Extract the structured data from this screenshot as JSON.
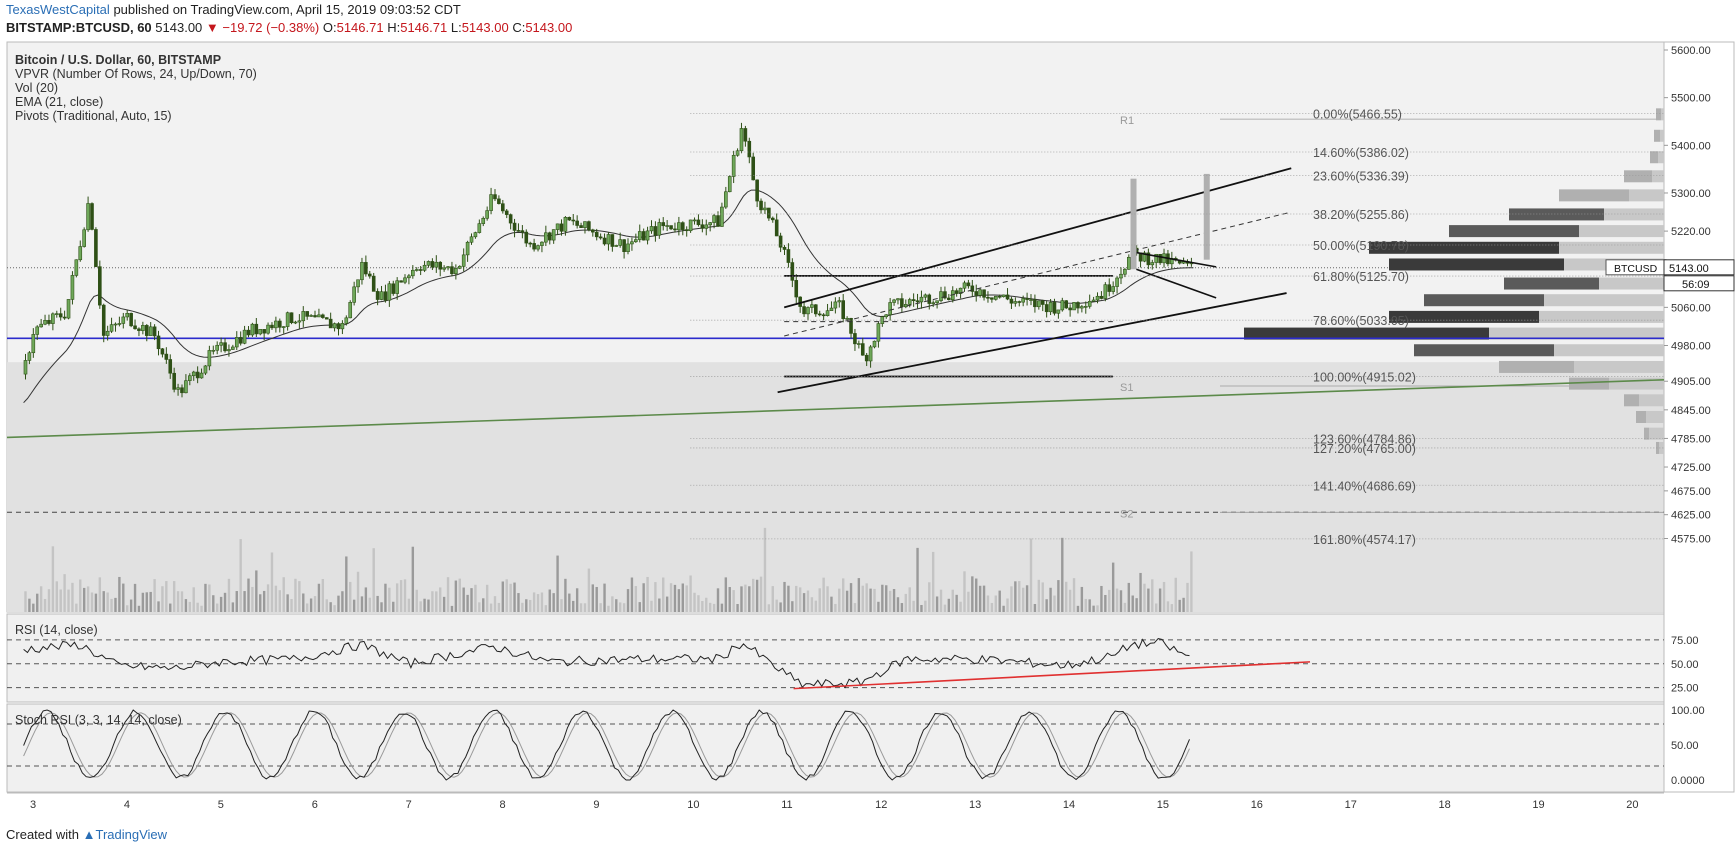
{
  "header": {
    "publisher": "TexasWestCapital",
    "published_text": "published on TradingView.com, April 15, 2019 09:03:52 CDT",
    "symbol": "BITSTAMP:BTCUSD, 60",
    "last": "5143.00",
    "change": "▼ −19.72 (−0.38%)",
    "o_label": "O:",
    "o_value": "5146.71",
    "h_label": "H:",
    "h_value": "5146.71",
    "l_label": "L:",
    "l_value": "5143.00",
    "c_label": "C:",
    "c_value": "5143.00"
  },
  "legend": {
    "title": "Bitcoin / U.S. Dollar, 60, BITSTAMP",
    "vpvr": "VPVR (Number Of Rows, 24, Up/Down, 70)",
    "vol": "Vol (20)",
    "ema": "EMA (21, close)",
    "pivots": "Pivots (Traditional, Auto, 15)"
  },
  "rsi_label": "RSI (14, close)",
  "stoch_label": "Stoch RSI (3, 3, 14, 14, close)",
  "footer": {
    "created_with": "Created with",
    "brand": "TradingView"
  },
  "price_tag": {
    "symbol": "BTCUSD",
    "price": "5143.00",
    "countdown": "56:09"
  },
  "colors": {
    "candle": "#2e5016",
    "horizontal_support": "#2b2bcc",
    "trendline_green": "#5c8a4a",
    "rsi_trend": "#e03030",
    "pane_bg": "#f0f0f0"
  },
  "chart_data": {
    "type": "candlestick",
    "symbol": "BTCUSD",
    "timeframe": "60",
    "ylim": [
      4530,
      5640
    ],
    "price_axis_labels": [
      "5600.00",
      "5500.00",
      "5400.00",
      "5300.00",
      "5220.00",
      "5143.00",
      "5060.00",
      "4980.00",
      "4905.00",
      "4845.00",
      "4785.00",
      "4725.00",
      "4675.00",
      "4625.00",
      "4575.00"
    ],
    "x_tick_labels": [
      "3",
      "4",
      "5",
      "6",
      "7",
      "8",
      "9",
      "10",
      "11",
      "12",
      "13",
      "14",
      "15",
      "16",
      "17",
      "18",
      "19",
      "20"
    ],
    "price_path": [
      {
        "day": 2.9,
        "close": 4920
      },
      {
        "day": 3.0,
        "close": 5010
      },
      {
        "day": 3.35,
        "close": 5050
      },
      {
        "day": 3.6,
        "close": 5290
      },
      {
        "day": 3.75,
        "close": 5000
      },
      {
        "day": 4.0,
        "close": 5040
      },
      {
        "day": 4.3,
        "close": 5000
      },
      {
        "day": 4.55,
        "close": 4880
      },
      {
        "day": 4.9,
        "close": 4960
      },
      {
        "day": 5.3,
        "close": 5010
      },
      {
        "day": 5.8,
        "close": 5040
      },
      {
        "day": 6.3,
        "close": 5020
      },
      {
        "day": 6.5,
        "close": 5150
      },
      {
        "day": 6.7,
        "close": 5080
      },
      {
        "day": 7.1,
        "close": 5150
      },
      {
        "day": 7.5,
        "close": 5140
      },
      {
        "day": 7.9,
        "close": 5290
      },
      {
        "day": 8.3,
        "close": 5190
      },
      {
        "day": 8.7,
        "close": 5240
      },
      {
        "day": 9.3,
        "close": 5190
      },
      {
        "day": 9.7,
        "close": 5230
      },
      {
        "day": 10.3,
        "close": 5240
      },
      {
        "day": 10.55,
        "close": 5440
      },
      {
        "day": 10.7,
        "close": 5300
      },
      {
        "day": 10.95,
        "close": 5200
      },
      {
        "day": 11.2,
        "close": 5050
      },
      {
        "day": 11.6,
        "close": 5060
      },
      {
        "day": 11.85,
        "close": 4950
      },
      {
        "day": 12.1,
        "close": 5060
      },
      {
        "day": 12.5,
        "close": 5080
      },
      {
        "day": 13.0,
        "close": 5100
      },
      {
        "day": 13.5,
        "close": 5070
      },
      {
        "day": 14.0,
        "close": 5060
      },
      {
        "day": 14.4,
        "close": 5090
      },
      {
        "day": 14.7,
        "close": 5170
      },
      {
        "day": 15.0,
        "close": 5160
      },
      {
        "day": 15.35,
        "close": 5143
      }
    ],
    "horizontal_support": 4995,
    "fibonacci": [
      {
        "label": "0.00%(5466.55)",
        "price": 5466.55
      },
      {
        "label": "14.60%(5386.02)",
        "price": 5386.02
      },
      {
        "label": "23.60%(5336.39)",
        "price": 5336.39
      },
      {
        "label": "38.20%(5255.86)",
        "price": 5255.86
      },
      {
        "label": "50.00%(5190.78)",
        "price": 5190.78
      },
      {
        "label": "61.80%(5125.70)",
        "price": 5125.7
      },
      {
        "label": "78.60%(5033.05)",
        "price": 5033.05
      },
      {
        "label": "100.00%(4915.02)",
        "price": 4915.02
      },
      {
        "label": "123.60%(4784.86)",
        "price": 4784.86
      },
      {
        "label": "127.20%(4765.00)",
        "price": 4765.0
      },
      {
        "label": "141.40%(4686.69)",
        "price": 4686.69
      },
      {
        "label": "161.80%(4574.17)",
        "price": 4574.17
      }
    ],
    "pivots": [
      {
        "label": "R1",
        "price": 5455
      },
      {
        "label": "S1",
        "price": 4895
      },
      {
        "label": "S2",
        "price": 4630
      }
    ],
    "rsi": {
      "levels": [
        75,
        50,
        25
      ],
      "labels": [
        "75.00",
        "50.00",
        "25.00"
      ],
      "path": [
        {
          "day": 2.9,
          "v": 65
        },
        {
          "day": 3.5,
          "v": 70
        },
        {
          "day": 3.9,
          "v": 48
        },
        {
          "day": 4.5,
          "v": 45
        },
        {
          "day": 5.0,
          "v": 52
        },
        {
          "day": 5.8,
          "v": 55
        },
        {
          "day": 6.5,
          "v": 70
        },
        {
          "day": 7.0,
          "v": 50
        },
        {
          "day": 7.9,
          "v": 68
        },
        {
          "day": 8.5,
          "v": 52
        },
        {
          "day": 9.5,
          "v": 55
        },
        {
          "day": 10.3,
          "v": 55
        },
        {
          "day": 10.55,
          "v": 72
        },
        {
          "day": 11.0,
          "v": 40
        },
        {
          "day": 11.2,
          "v": 28
        },
        {
          "day": 11.8,
          "v": 30
        },
        {
          "day": 12.3,
          "v": 55
        },
        {
          "day": 13.0,
          "v": 55
        },
        {
          "day": 13.5,
          "v": 52
        },
        {
          "day": 14.0,
          "v": 48
        },
        {
          "day": 14.5,
          "v": 58
        },
        {
          "day": 14.7,
          "v": 70
        },
        {
          "day": 15.0,
          "v": 72
        },
        {
          "day": 15.35,
          "v": 55
        }
      ]
    },
    "stoch_rsi": {
      "levels": [
        100,
        50,
        0
      ],
      "labels": [
        "100.00",
        "50.00",
        "0.0000"
      ]
    },
    "vpvr_rows": [
      {
        "price": 5465,
        "up": 5,
        "down": 3
      },
      {
        "price": 5420,
        "up": 6,
        "down": 4
      },
      {
        "price": 5375,
        "up": 8,
        "down": 6
      },
      {
        "price": 5335,
        "up": 28,
        "down": 12
      },
      {
        "price": 5295,
        "up": 70,
        "down": 35
      },
      {
        "price": 5255,
        "up": 95,
        "down": 60
      },
      {
        "price": 5220,
        "up": 130,
        "down": 85
      },
      {
        "price": 5185,
        "up": 190,
        "down": 105
      },
      {
        "price": 5150,
        "up": 175,
        "down": 100
      },
      {
        "price": 5110,
        "up": 95,
        "down": 65
      },
      {
        "price": 5075,
        "up": 120,
        "down": 120
      },
      {
        "price": 5040,
        "up": 150,
        "down": 125
      },
      {
        "price": 5005,
        "up": 245,
        "down": 175
      },
      {
        "price": 4970,
        "up": 140,
        "down": 110
      },
      {
        "price": 4935,
        "up": 75,
        "down": 90
      },
      {
        "price": 4900,
        "up": 40,
        "down": 55
      },
      {
        "price": 4865,
        "up": 15,
        "down": 25
      },
      {
        "price": 4830,
        "up": 10,
        "down": 18
      },
      {
        "price": 4795,
        "up": 5,
        "down": 15
      },
      {
        "price": 4765,
        "up": 3,
        "down": 5
      }
    ]
  }
}
